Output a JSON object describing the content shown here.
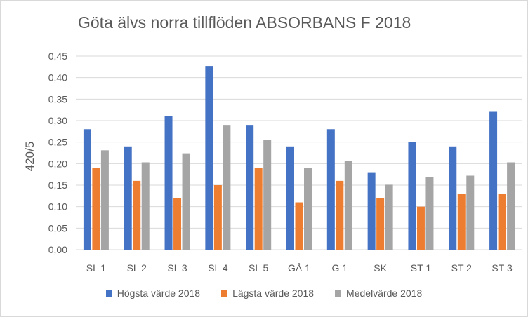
{
  "chart_data": {
    "type": "bar",
    "title": "Göta älvs norra tillflöden ABSORBANS F 2018",
    "xlabel": "",
    "ylabel": "420/5",
    "ylim": [
      0,
      0.45
    ],
    "yticks": [
      "0,00",
      "0,05",
      "0,10",
      "0,15",
      "0,20",
      "0,25",
      "0,30",
      "0,35",
      "0,40",
      "0,45"
    ],
    "ytick_values": [
      0,
      0.05,
      0.1,
      0.15,
      0.2,
      0.25,
      0.3,
      0.35,
      0.4,
      0.45
    ],
    "grid": true,
    "legend_position": "bottom",
    "categories": [
      "SL 1",
      "SL 2",
      "SL 3",
      "SL 4",
      "SL 5",
      "GÅ 1",
      "G 1",
      "SK",
      "ST 1",
      "ST 2",
      "ST 3"
    ],
    "series": [
      {
        "name": "Högsta värde 2018",
        "color": "#4472c4",
        "values": [
          0.28,
          0.24,
          0.31,
          0.427,
          0.29,
          0.24,
          0.28,
          0.18,
          0.25,
          0.24,
          0.322
        ]
      },
      {
        "name": "Lägsta värde 2018",
        "color": "#ed7d31",
        "values": [
          0.19,
          0.16,
          0.12,
          0.15,
          0.19,
          0.11,
          0.16,
          0.12,
          0.1,
          0.13,
          0.13
        ]
      },
      {
        "name": "Medelvärde 2018",
        "color": "#a5a5a5",
        "values": [
          0.231,
          0.203,
          0.224,
          0.29,
          0.255,
          0.19,
          0.206,
          0.151,
          0.168,
          0.172,
          0.203
        ]
      }
    ]
  }
}
